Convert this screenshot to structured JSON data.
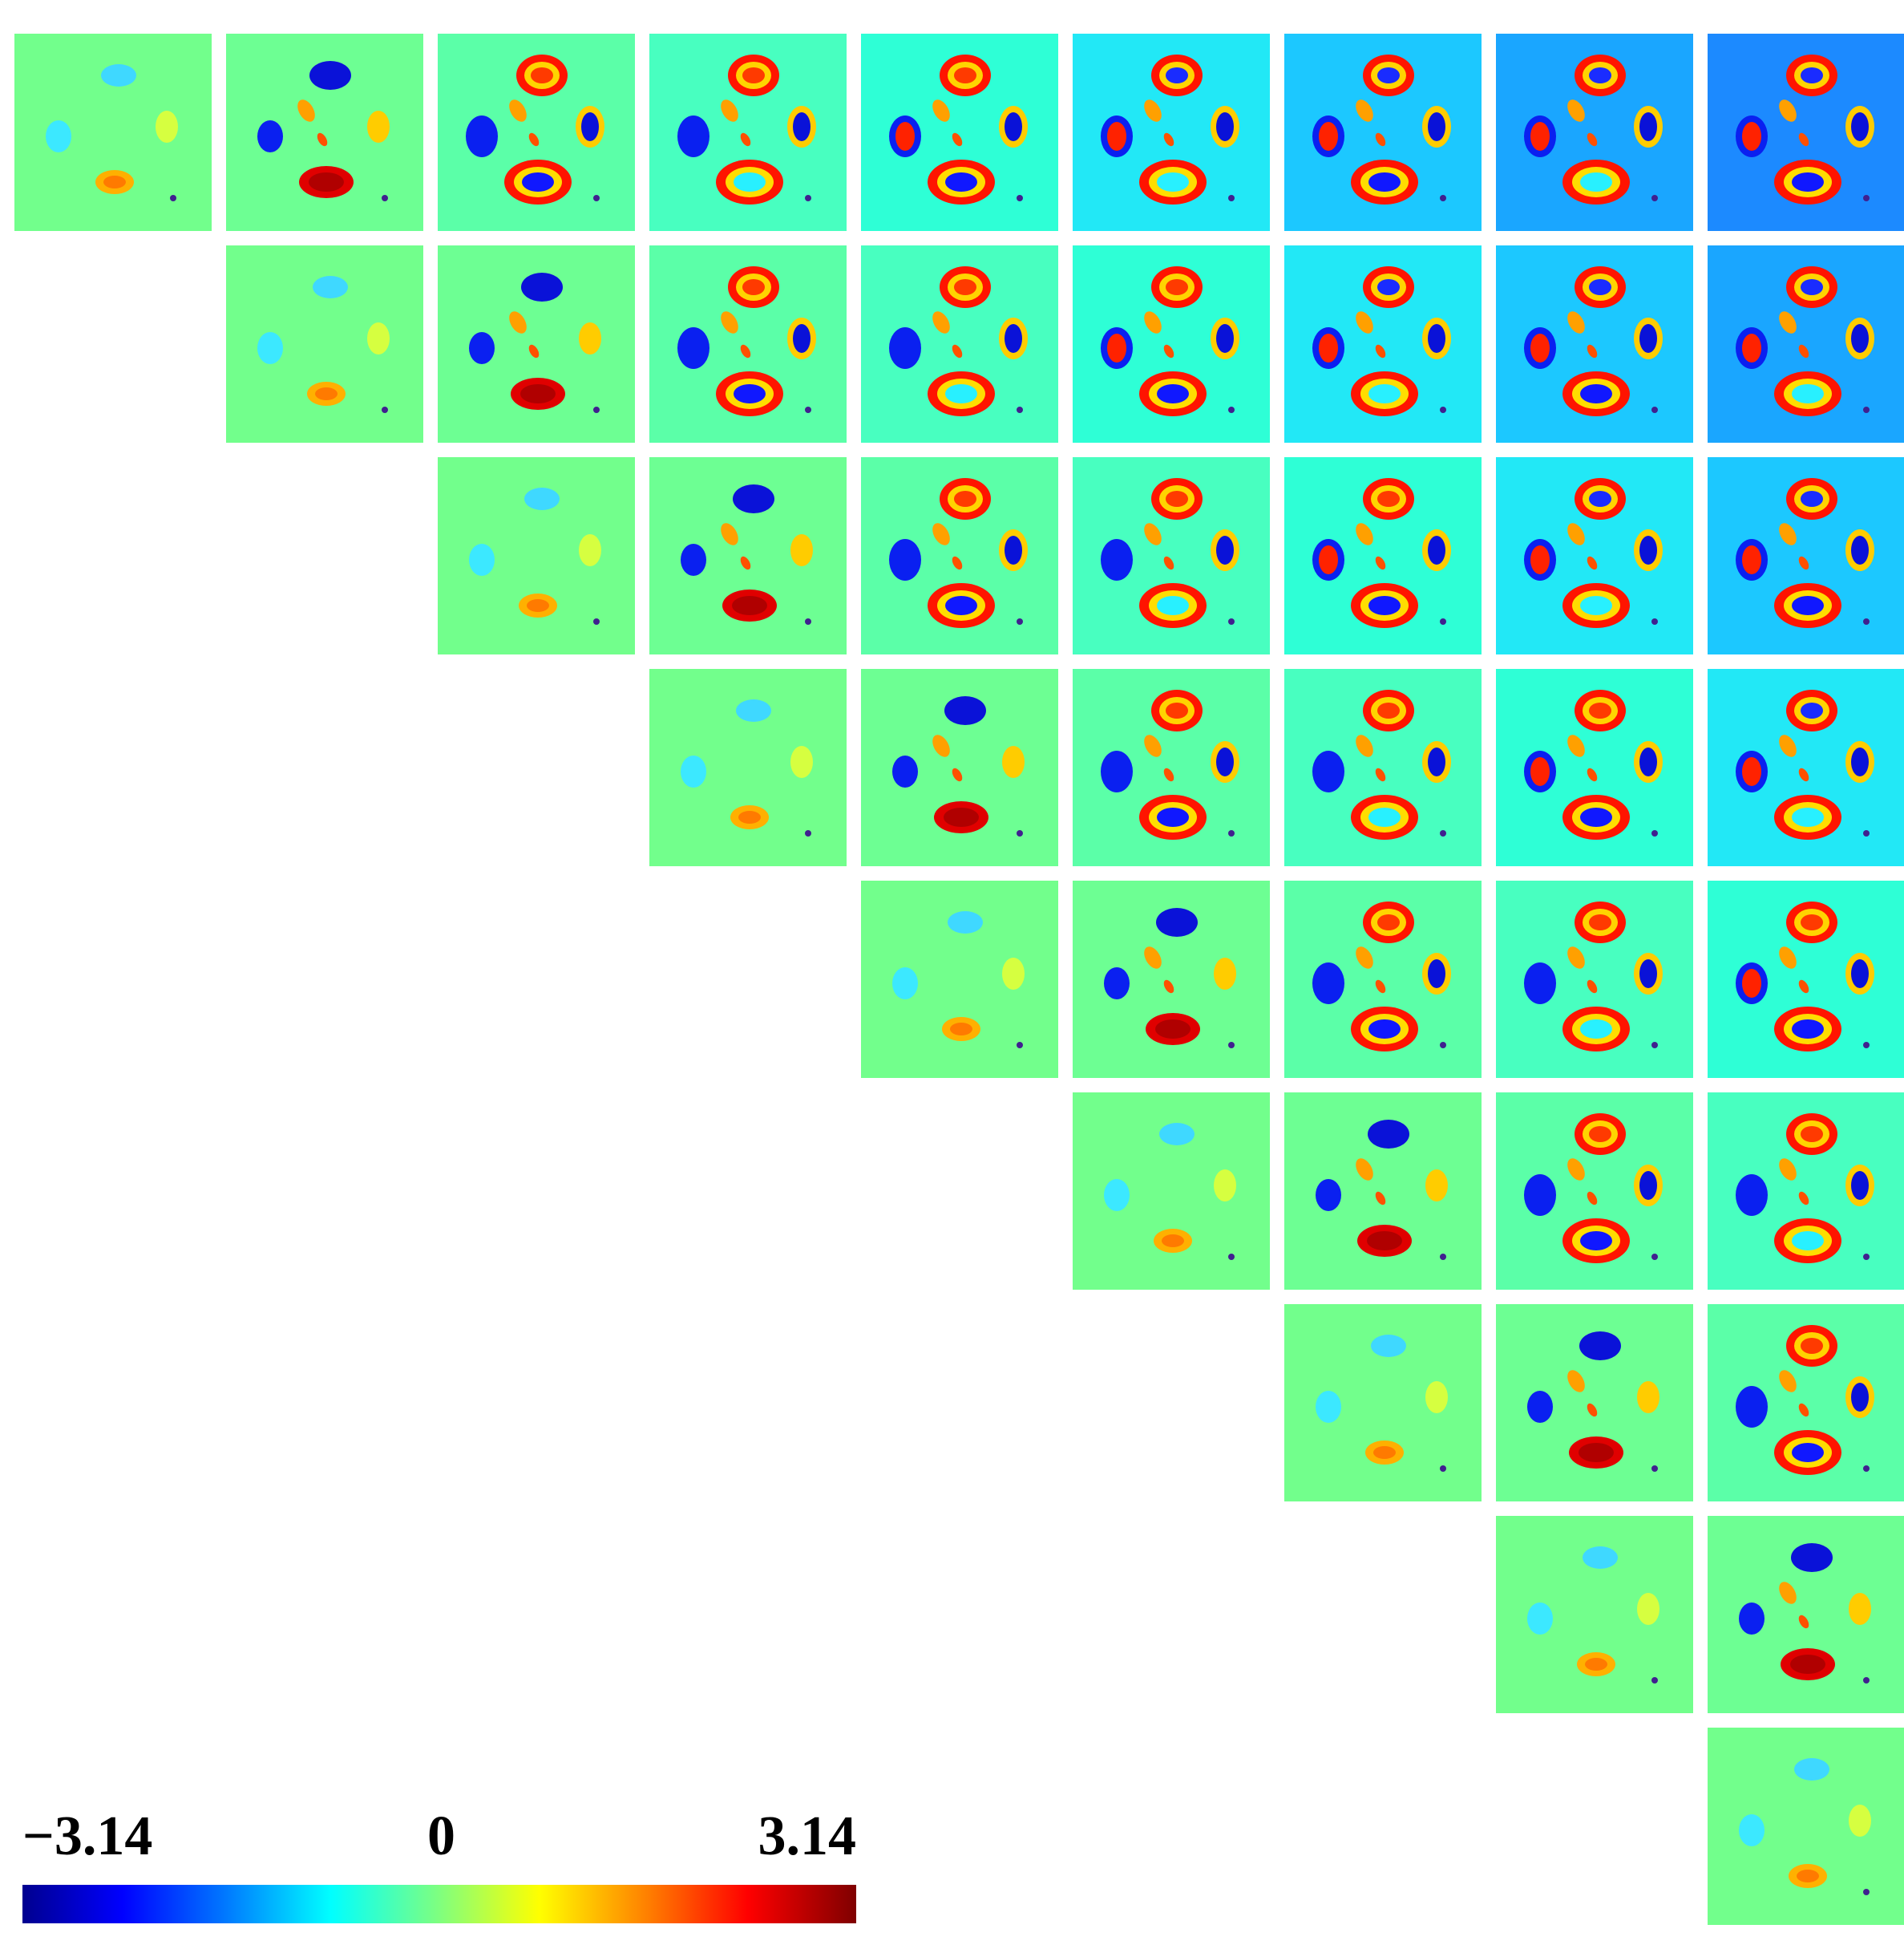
{
  "figure": {
    "tiles": [
      {
        "row": 1,
        "col": 1,
        "level": 1
      },
      {
        "row": 1,
        "col": 2,
        "level": 2
      },
      {
        "row": 1,
        "col": 3,
        "level": 3
      },
      {
        "row": 1,
        "col": 4,
        "level": 4
      },
      {
        "row": 1,
        "col": 5,
        "level": 5
      },
      {
        "row": 1,
        "col": 6,
        "level": 6
      },
      {
        "row": 1,
        "col": 7,
        "level": 7
      },
      {
        "row": 1,
        "col": 8,
        "level": 8
      },
      {
        "row": 1,
        "col": 9,
        "level": 9
      },
      {
        "row": 2,
        "col": 2,
        "level": 1
      },
      {
        "row": 2,
        "col": 3,
        "level": 2
      },
      {
        "row": 2,
        "col": 4,
        "level": 3
      },
      {
        "row": 2,
        "col": 5,
        "level": 4
      },
      {
        "row": 2,
        "col": 6,
        "level": 5
      },
      {
        "row": 2,
        "col": 7,
        "level": 6
      },
      {
        "row": 2,
        "col": 8,
        "level": 7
      },
      {
        "row": 2,
        "col": 9,
        "level": 8
      },
      {
        "row": 3,
        "col": 3,
        "level": 1
      },
      {
        "row": 3,
        "col": 4,
        "level": 2
      },
      {
        "row": 3,
        "col": 5,
        "level": 3
      },
      {
        "row": 3,
        "col": 6,
        "level": 4
      },
      {
        "row": 3,
        "col": 7,
        "level": 5
      },
      {
        "row": 3,
        "col": 8,
        "level": 6
      },
      {
        "row": 3,
        "col": 9,
        "level": 7
      },
      {
        "row": 4,
        "col": 4,
        "level": 1
      },
      {
        "row": 4,
        "col": 5,
        "level": 2
      },
      {
        "row": 4,
        "col": 6,
        "level": 3
      },
      {
        "row": 4,
        "col": 7,
        "level": 4
      },
      {
        "row": 4,
        "col": 8,
        "level": 5
      },
      {
        "row": 4,
        "col": 9,
        "level": 6
      },
      {
        "row": 5,
        "col": 5,
        "level": 1
      },
      {
        "row": 5,
        "col": 6,
        "level": 2
      },
      {
        "row": 5,
        "col": 7,
        "level": 3
      },
      {
        "row": 5,
        "col": 8,
        "level": 4
      },
      {
        "row": 5,
        "col": 9,
        "level": 5
      },
      {
        "row": 6,
        "col": 6,
        "level": 1
      },
      {
        "row": 6,
        "col": 7,
        "level": 2
      },
      {
        "row": 6,
        "col": 8,
        "level": 3
      },
      {
        "row": 6,
        "col": 9,
        "level": 4
      },
      {
        "row": 7,
        "col": 7,
        "level": 1
      },
      {
        "row": 7,
        "col": 8,
        "level": 2
      },
      {
        "row": 7,
        "col": 9,
        "level": 3
      },
      {
        "row": 8,
        "col": 8,
        "level": 1
      },
      {
        "row": 8,
        "col": 9,
        "level": 2
      },
      {
        "row": 9,
        "col": 9,
        "level": 1
      }
    ]
  },
  "colorbar": {
    "min_label": "−3.14",
    "mid_label": "0",
    "max_label": "3.14",
    "colormap": "jet",
    "colors": [
      "#00008f",
      "#0000ff",
      "#007fff",
      "#00ffff",
      "#7fff7f",
      "#ffff00",
      "#ff7f00",
      "#ff0000",
      "#7f0000"
    ]
  }
}
